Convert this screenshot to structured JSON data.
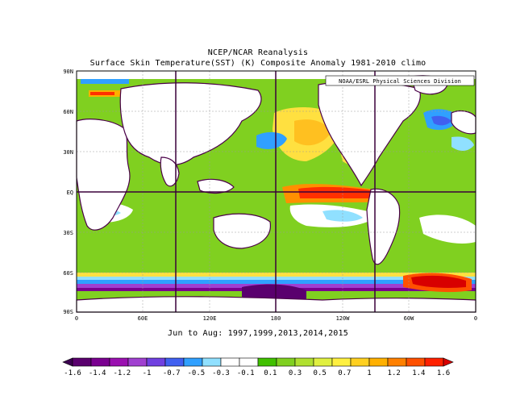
{
  "titles": {
    "line1": "NCEP/NCAR Reanalysis",
    "line2": "Surface Skin Temperature(SST) (K) Composite Anomaly 1981-2010 climo",
    "subtitle": "Jun to Aug: 1997,1999,2013,2014,2015",
    "credit": "NOAA/ESRL Physical Sciences Division"
  },
  "axes": {
    "lat_labels": [
      "90N",
      "60N",
      "30N",
      "EQ",
      "30S",
      "60S",
      "90S"
    ],
    "lon_labels": [
      "0",
      "60E",
      "120E",
      "180",
      "120W",
      "60W",
      "0"
    ]
  },
  "colorbar": {
    "labels": [
      "-1.6",
      "-1.4",
      "-1.2",
      "-1",
      "-0.7",
      "-0.5",
      "-0.3",
      "-0.1",
      "0.1",
      "0.3",
      "0.5",
      "0.7",
      "1",
      "1.2",
      "1.4",
      "1.6"
    ],
    "colors": [
      "#3b0050",
      "#5a006e",
      "#7a0090",
      "#9a10b0",
      "#a040d0",
      "#7040e0",
      "#4060f0",
      "#30a0ff",
      "#90e0ff",
      "#ffffff",
      "#ffffff",
      "#40c000",
      "#80d020",
      "#b0e030",
      "#e0f040",
      "#fff040",
      "#ffd020",
      "#ffb000",
      "#ff8000",
      "#ff5000",
      "#ff2000",
      "#d80000"
    ]
  },
  "map_style": {
    "ocean_default": "#80d020",
    "land": "#ffffff",
    "coastline": "#4a0048",
    "grid_major": "#3a003a",
    "grid_minor": "#9a9a9a"
  }
}
